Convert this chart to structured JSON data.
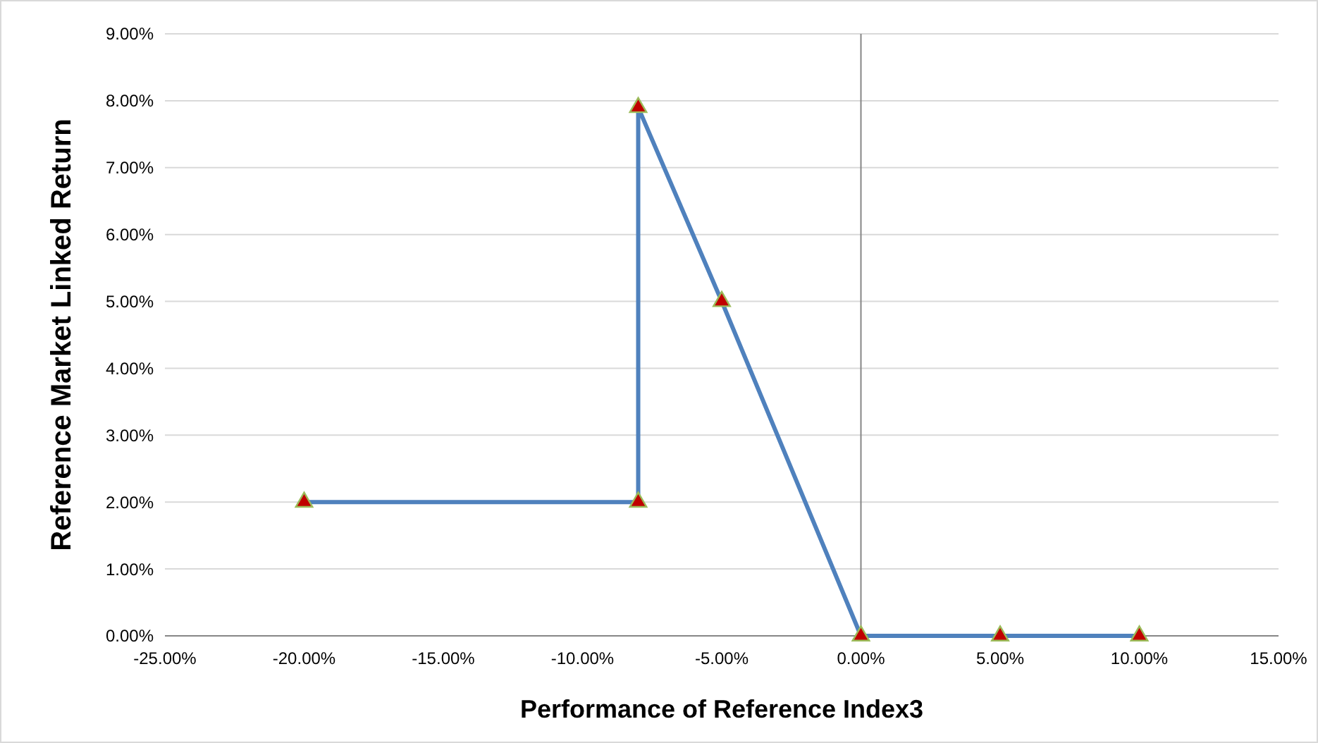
{
  "chart_data": {
    "type": "line",
    "xlabel": "Performance of Reference Index3",
    "ylabel": "Reference Market Linked Return",
    "x": [
      -20,
      -8,
      -8,
      -5,
      0,
      5,
      10
    ],
    "series": [
      {
        "color": "#4f81bd",
        "values": [
          2,
          2,
          7.9,
          5,
          0,
          0,
          0
        ]
      }
    ],
    "xlim": [
      -25,
      15
    ],
    "xticks": [
      {
        "value": -25,
        "label": "-25.00%"
      },
      {
        "value": -20,
        "label": "-20.00%"
      },
      {
        "value": -15,
        "label": "-15.00%"
      },
      {
        "value": -10,
        "label": "-10.00%"
      },
      {
        "value": -5,
        "label": "-5.00%"
      },
      {
        "value": 0,
        "label": "0.00%"
      },
      {
        "value": 5,
        "label": "5.00%"
      },
      {
        "value": 10,
        "label": "10.00%"
      },
      {
        "value": 15,
        "label": "15.00%"
      }
    ],
    "ylim": [
      0,
      9
    ],
    "yticks": [
      {
        "value": 0,
        "label": "0.00%"
      },
      {
        "value": 1,
        "label": "1.00%"
      },
      {
        "value": 2,
        "label": "2.00%"
      },
      {
        "value": 3,
        "label": "3.00%"
      },
      {
        "value": 4,
        "label": "4.00%"
      },
      {
        "value": 5,
        "label": "5.00%"
      },
      {
        "value": 6,
        "label": "6.00%"
      },
      {
        "value": 7,
        "label": "7.00%"
      },
      {
        "value": 8,
        "label": "8.00%"
      },
      {
        "value": 9,
        "label": "9.00%"
      }
    ],
    "ref_lines": [
      {
        "axis": "x",
        "value": 0,
        "color": "#868686"
      }
    ],
    "grid": "y",
    "marker": "triangle",
    "line_style": "solid"
  }
}
